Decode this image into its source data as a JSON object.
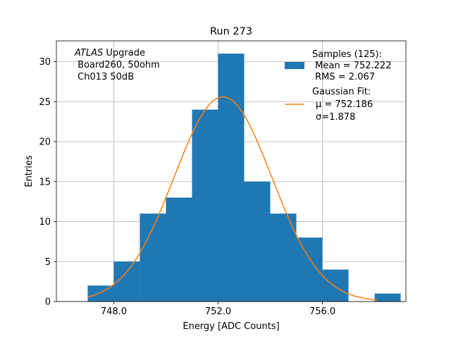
{
  "chart_data": {
    "type": "bar",
    "title": "Run 273",
    "xlabel": "Energy [ADC Counts]",
    "ylabel": "Entries",
    "xlim": [
      745.8,
      759.2
    ],
    "ylim": [
      0,
      32.6
    ],
    "xticks": [
      748.0,
      752.0,
      756.0
    ],
    "xtick_labels": [
      "748.0",
      "752.0",
      "756.0"
    ],
    "yticks": [
      0,
      5,
      10,
      15,
      20,
      25,
      30
    ],
    "ytick_labels": [
      "0",
      "5",
      "10",
      "15",
      "20",
      "25",
      "30"
    ],
    "grid": true,
    "bin_edges": [
      747.0,
      748.0,
      749.0,
      750.0,
      751.0,
      752.0,
      753.0,
      754.0,
      755.0,
      756.0,
      757.0,
      758.0,
      759.0
    ],
    "counts": [
      2,
      5,
      11,
      13,
      24,
      31,
      15,
      11,
      8,
      4,
      0,
      1
    ],
    "bar_color": "#1f77b4",
    "fit": {
      "mu": 752.186,
      "sigma": 1.878,
      "scale": 25.6,
      "x_range": [
        747.0,
        758.1
      ],
      "color": "#ff7f0e"
    },
    "annotation": {
      "italic": "ATLAS",
      "rest": " Upgrade",
      "line2": " Board260, 50ohm",
      "line3": " Ch013 50dB"
    },
    "legend": {
      "position": "top-right",
      "samples_lines": [
        "Samples (125):",
        " Mean = 752.222",
        " RMS = 2.067"
      ],
      "fit_lines": [
        "Gaussian Fit:",
        "μ = 752.186",
        "σ=1.878"
      ]
    }
  }
}
